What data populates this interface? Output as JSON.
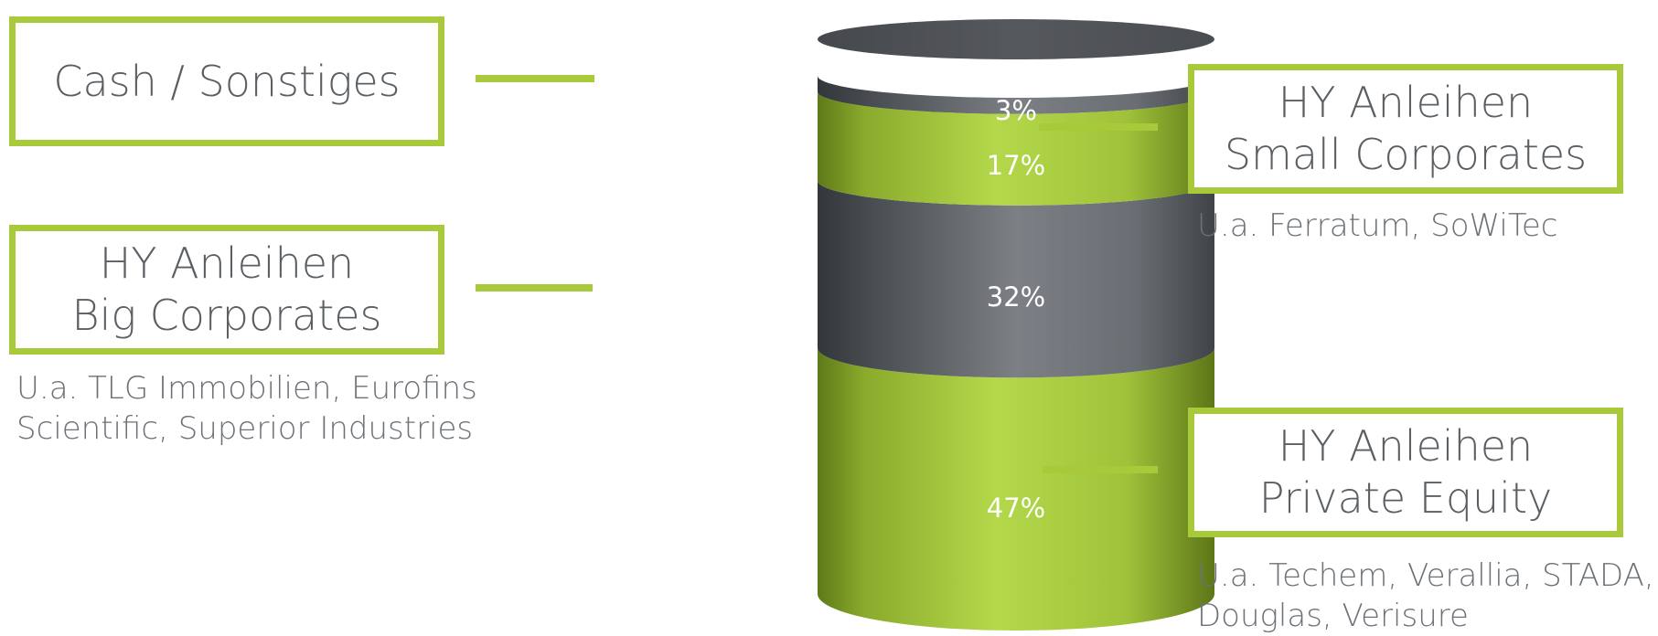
{
  "chart_data": {
    "type": "bar",
    "title": "",
    "categories": [
      "Cash / Sonstiges",
      "HY Anleihen Small Corporates",
      "HY Anleihen Big Corporates",
      "HY Anleihen Private Equity"
    ],
    "values": [
      3,
      17,
      32,
      47
    ],
    "value_labels": [
      "3%",
      "17%",
      "32%",
      "47%"
    ],
    "colors": [
      "#55585d",
      "#a7c93a",
      "#55585d",
      "#a7c93a"
    ],
    "stacked": true
  },
  "boxes": {
    "cash": {
      "line1": "Cash / Sonstiges"
    },
    "big": {
      "line1": "HY Anleihen",
      "line2": "Big Corporates",
      "note1": "U.a. TLG Immobilien, Eurofins",
      "note2": "Scientific, Superior Industries"
    },
    "small": {
      "line1": "HY Anleihen",
      "line2": "Small Corporates",
      "note1": "U.a. Ferratum, SoWiTec"
    },
    "pe": {
      "line1": "HY Anleihen",
      "line2": "Private Equity",
      "note1": "U.a. Techem, Verallia, STADA,",
      "note2": "Douglas, Verisure"
    }
  },
  "colors": {
    "accent_green": "#a7c93a",
    "dark_gray": "#55585d"
  }
}
